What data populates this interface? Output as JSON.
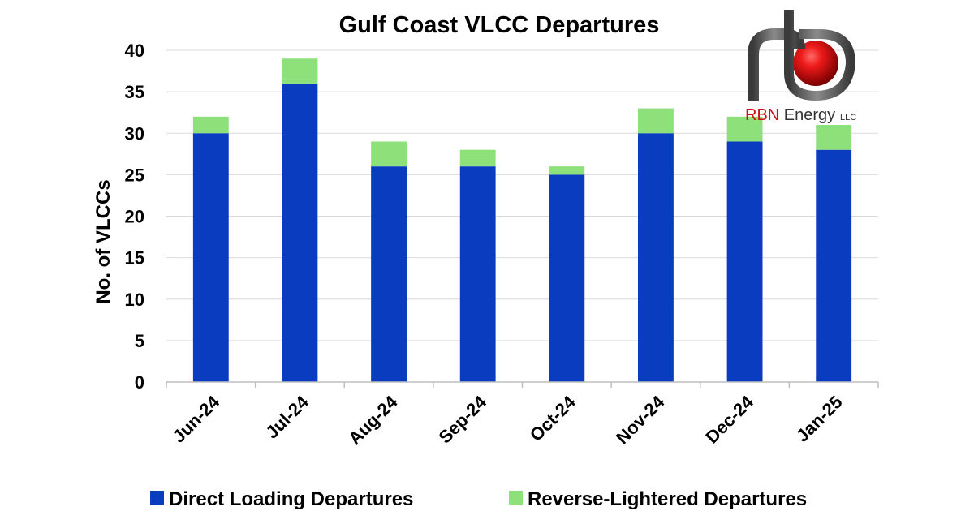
{
  "chart_data": {
    "type": "bar",
    "stacked": true,
    "title": "Gulf Coast VLCC Departures",
    "xlabel": "",
    "ylabel": "No. of VLCCs",
    "ylim": [
      0,
      40
    ],
    "yticks": [
      0,
      5,
      10,
      15,
      20,
      25,
      30,
      35,
      40
    ],
    "grid": true,
    "legend_position": "bottom",
    "categories": [
      "Jun-24",
      "Jul-24",
      "Aug-24",
      "Sep-24",
      "Oct-24",
      "Nov-24",
      "Dec-24",
      "Jan-25"
    ],
    "series": [
      {
        "name": "Direct Loading Departures",
        "color": "#0a3cc0",
        "values": [
          30,
          36,
          26,
          26,
          25,
          30,
          29,
          28
        ]
      },
      {
        "name": "Reverse-Lightered Departures",
        "color": "#8ee07a",
        "values": [
          2,
          3,
          3,
          2,
          1,
          3,
          3,
          3
        ]
      }
    ]
  },
  "logo": {
    "text_main_red": "RBN",
    "text_main_dark": " Energy",
    "text_suffix": "LLC",
    "colors": {
      "red": "#cc1111",
      "pipe": "#6b6b6b",
      "text": "#333333"
    }
  }
}
